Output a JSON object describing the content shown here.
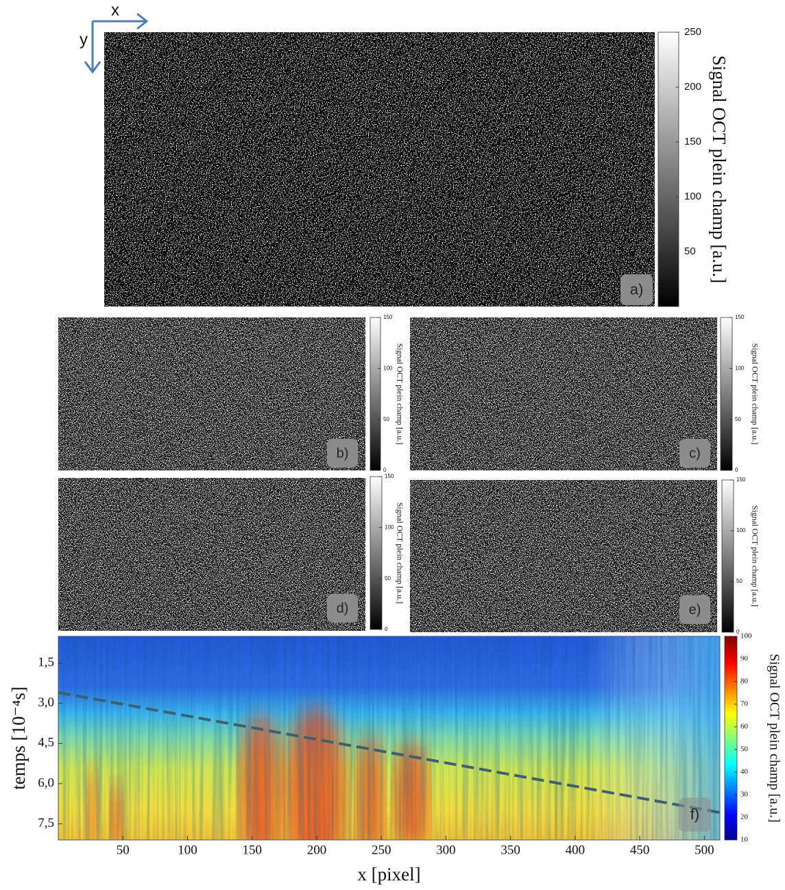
{
  "chart_data": [
    {
      "type": "image",
      "panel_label": "a)",
      "axis_arrows": {
        "x": "x",
        "y": "y"
      },
      "colorbar": {
        "label": "Signal OCT plein champ [a.u.]",
        "lim": [
          0,
          250
        ],
        "ticks": [
          50,
          100,
          150,
          200,
          250
        ],
        "colormap": "gray"
      }
    },
    {
      "type": "image",
      "panel_label": "b)",
      "colorbar": {
        "label": "Signal OCT plein champ [a.u.]",
        "lim": [
          0,
          150
        ],
        "ticks": [
          0,
          50,
          100,
          150
        ],
        "colormap": "gray"
      }
    },
    {
      "type": "image",
      "panel_label": "c)",
      "colorbar": {
        "label": "Signal OCT plein champ [a.u.]",
        "lim": [
          0,
          150
        ],
        "ticks": [
          0,
          50,
          100,
          150
        ],
        "colormap": "gray"
      }
    },
    {
      "type": "image",
      "panel_label": "d)",
      "colorbar": {
        "label": "Signal OCT plein champ [a.u.]",
        "lim": [
          0,
          150
        ],
        "ticks": [
          0,
          50,
          100,
          150
        ],
        "colormap": "gray"
      }
    },
    {
      "type": "image",
      "panel_label": "e)",
      "colorbar": {
        "label": "Signal OCT plein champ [a.u.]",
        "lim": [
          0,
          150
        ],
        "ticks": [
          0,
          50,
          100,
          150
        ],
        "colormap": "gray"
      }
    },
    {
      "type": "heatmap",
      "panel_label": "f)",
      "xlabel": "x [pixel]",
      "ylabel": "temps [10⁻⁴s]",
      "xlim": [
        0,
        512
      ],
      "xticks": [
        50,
        100,
        150,
        200,
        250,
        300,
        350,
        400,
        450,
        500
      ],
      "ylim": [
        0.5,
        8.1
      ],
      "yaxis_inverted": true,
      "yticks": [
        {
          "value": 1.5,
          "label": "1,5"
        },
        {
          "value": 3.0,
          "label": "3,0"
        },
        {
          "value": 4.5,
          "label": "4,5"
        },
        {
          "value": 6.0,
          "label": "6,0"
        },
        {
          "value": 7.5,
          "label": "7,5"
        }
      ],
      "colorbar": {
        "label": "Signal OCT plein champ [a.u.]",
        "lim": [
          10,
          100
        ],
        "ticks": [
          10,
          20,
          30,
          40,
          50,
          60,
          70,
          80,
          90,
          100
        ],
        "colormap": "jet"
      }
    }
  ]
}
